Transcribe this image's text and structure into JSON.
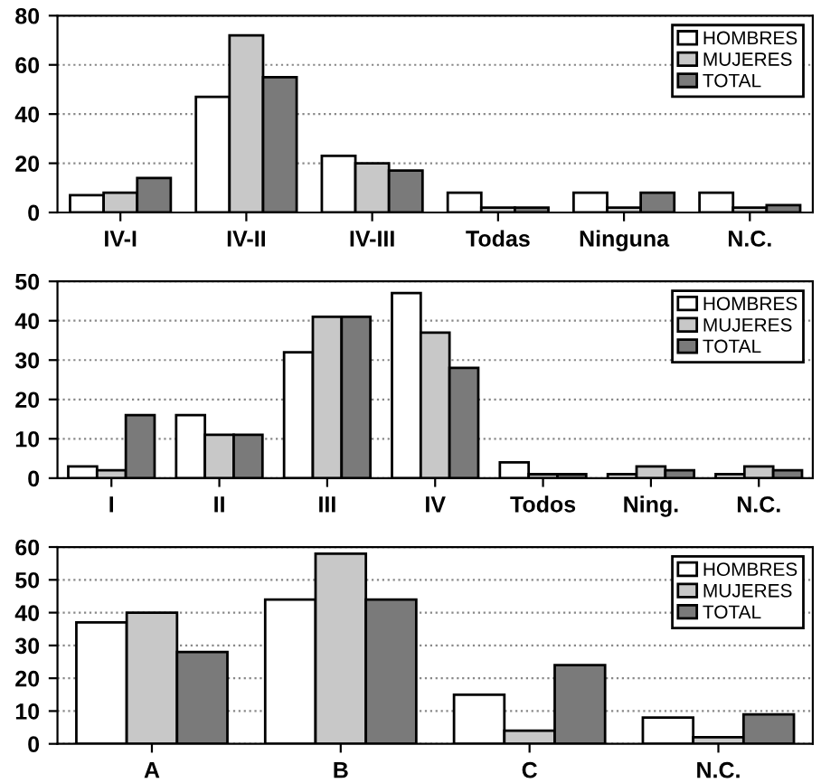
{
  "chart_data": [
    {
      "type": "bar",
      "categories": [
        "IV-I",
        "IV-II",
        "IV-III",
        "Todas",
        "Ninguna",
        "N.C."
      ],
      "ylim": [
        0,
        80
      ],
      "yticks": [
        0,
        20,
        40,
        60,
        80
      ],
      "grid": "y",
      "legend": "top right",
      "series": [
        {
          "name": "HOMBRES",
          "color": "#ffffff",
          "values": [
            7,
            47,
            23,
            8,
            8,
            8
          ]
        },
        {
          "name": "MUJERES",
          "color": "#c8c8c8",
          "values": [
            8,
            72,
            20,
            2,
            2,
            2
          ]
        },
        {
          "name": "TOTAL",
          "color": "#7a7a7a",
          "values": [
            14,
            55,
            17,
            2,
            8,
            3
          ]
        }
      ]
    },
    {
      "type": "bar",
      "categories": [
        "I",
        "II",
        "III",
        "IV",
        "Todos",
        "Ning.",
        "N.C."
      ],
      "ylim": [
        0,
        50
      ],
      "yticks": [
        0,
        10,
        20,
        30,
        40,
        50
      ],
      "grid": "y",
      "legend": "top right",
      "series": [
        {
          "name": "HOMBRES",
          "color": "#ffffff",
          "values": [
            3,
            16,
            32,
            47,
            4,
            1,
            1
          ]
        },
        {
          "name": "MUJERES",
          "color": "#c8c8c8",
          "values": [
            2,
            11,
            41,
            37,
            1,
            3,
            3
          ]
        },
        {
          "name": "TOTAL",
          "color": "#7a7a7a",
          "values": [
            16,
            11,
            41,
            28,
            1,
            2,
            2
          ]
        }
      ]
    },
    {
      "type": "bar",
      "categories": [
        "A",
        "B",
        "C",
        "N.C."
      ],
      "ylim": [
        0,
        60
      ],
      "yticks": [
        0,
        10,
        20,
        30,
        40,
        50,
        60
      ],
      "grid": "y",
      "legend": "top right",
      "series": [
        {
          "name": "HOMBRES",
          "color": "#ffffff",
          "values": [
            37,
            44,
            15,
            8
          ]
        },
        {
          "name": "MUJERES",
          "color": "#c8c8c8",
          "values": [
            40,
            58,
            4,
            2
          ]
        },
        {
          "name": "TOTAL",
          "color": "#7a7a7a",
          "values": [
            28,
            44,
            24,
            9
          ]
        }
      ]
    }
  ]
}
